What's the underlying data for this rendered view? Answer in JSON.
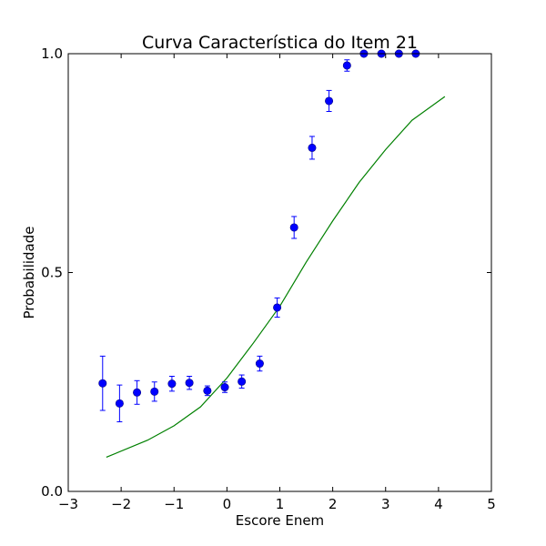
{
  "chart_data": {
    "type": "scatter",
    "title": "Curva Característica do Item 21",
    "xlabel": "Escore Enem",
    "ylabel": "Probabilidade",
    "xlim": [
      -3,
      5
    ],
    "ylim": [
      0,
      1
    ],
    "xticks": [
      -3,
      -2,
      -1,
      0,
      1,
      2,
      3,
      4,
      5
    ],
    "xtick_labels": [
      "−3",
      "−2",
      "−1",
      "0",
      "1",
      "2",
      "3",
      "4",
      "5"
    ],
    "yticks": [
      0,
      0.5,
      1
    ],
    "ytick_labels": [
      "0.0",
      "0.5",
      "1.0"
    ],
    "grid": false,
    "series": [
      {
        "kind": "errorbar",
        "color": "#0000ff",
        "points": [
          {
            "x": -2.35,
            "y": 0.247,
            "err": 0.062
          },
          {
            "x": -2.03,
            "y": 0.201,
            "err": 0.042
          },
          {
            "x": -1.7,
            "y": 0.226,
            "err": 0.027
          },
          {
            "x": -1.37,
            "y": 0.228,
            "err": 0.022
          },
          {
            "x": -1.04,
            "y": 0.246,
            "err": 0.017
          },
          {
            "x": -0.71,
            "y": 0.248,
            "err": 0.015
          },
          {
            "x": -0.37,
            "y": 0.23,
            "err": 0.011
          },
          {
            "x": -0.04,
            "y": 0.238,
            "err": 0.012
          },
          {
            "x": 0.28,
            "y": 0.251,
            "err": 0.015
          },
          {
            "x": 0.62,
            "y": 0.292,
            "err": 0.017
          },
          {
            "x": 0.95,
            "y": 0.42,
            "err": 0.022
          },
          {
            "x": 1.27,
            "y": 0.603,
            "err": 0.025
          },
          {
            "x": 1.61,
            "y": 0.785,
            "err": 0.026
          },
          {
            "x": 1.93,
            "y": 0.892,
            "err": 0.024
          },
          {
            "x": 2.27,
            "y": 0.973,
            "err": 0.013
          },
          {
            "x": 2.59,
            "y": 1.0,
            "err": 0.003
          },
          {
            "x": 2.92,
            "y": 1.0,
            "err": 0.002
          },
          {
            "x": 3.25,
            "y": 1.0,
            "err": 0.002
          },
          {
            "x": 3.57,
            "y": 1.0,
            "err": 0.002
          }
        ]
      },
      {
        "kind": "line",
        "color": "#008000",
        "x": [
          -2.28,
          -1.5,
          -1.0,
          -0.5,
          0.0,
          0.5,
          1.0,
          1.5,
          2.0,
          2.5,
          3.0,
          3.5,
          4.12
        ],
        "y": [
          0.078,
          0.117,
          0.15,
          0.193,
          0.259,
          0.339,
          0.423,
          0.524,
          0.618,
          0.706,
          0.781,
          0.848,
          0.902
        ]
      }
    ]
  }
}
